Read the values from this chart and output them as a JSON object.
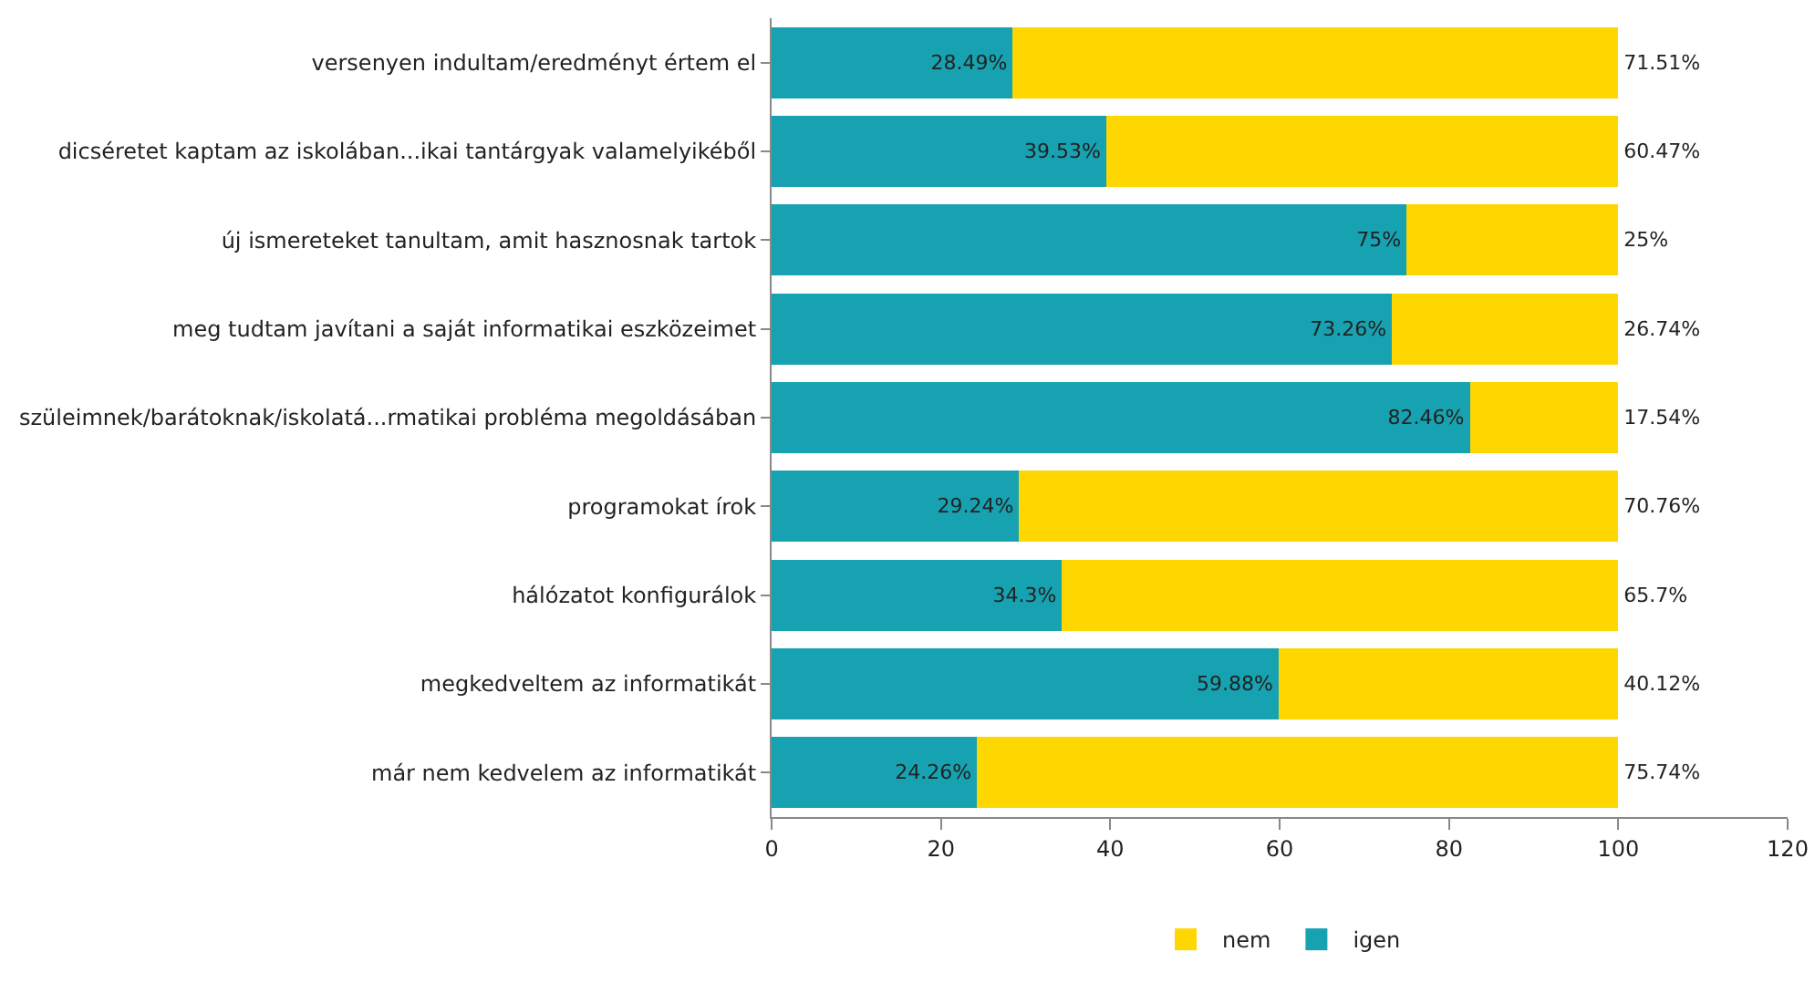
{
  "chart_data": {
    "type": "bar",
    "orientation": "horizontal",
    "stacked": true,
    "categories": [
      "versenyen indultam/eredményt értem el",
      "dicséretet kaptam az iskolában...ikai tantárgyak valamelyikéből",
      "új ismereteket tanultam, amit hasznosnak tartok",
      "meg tudtam javítani a saját informatikai eszközeimet",
      "szüleimnek/barátoknak/iskolatá...rmatikai probléma megoldásában",
      "programokat írok",
      "hálózatot konfigurálok",
      "megkedveltem az informatikát",
      "már nem kedvelem az informatikát"
    ],
    "series": [
      {
        "name": "igen",
        "color": "#17a2b1",
        "values": [
          28.49,
          39.53,
          75,
          73.26,
          82.46,
          29.24,
          34.3,
          59.88,
          24.26
        ],
        "value_labels": [
          "28.49%",
          "39.53%",
          "75%",
          "73.26%",
          "82.46%",
          "29.24%",
          "34.3%",
          "59.88%",
          "24.26%"
        ]
      },
      {
        "name": "nem",
        "color": "#ffd700",
        "values": [
          71.51,
          60.47,
          25,
          26.74,
          17.54,
          70.76,
          65.7,
          40.12,
          75.74
        ],
        "value_labels": [
          "71.51%",
          "60.47%",
          "25%",
          "26.74%",
          "17.54%",
          "70.76%",
          "65.7%",
          "40.12%",
          "75.74%"
        ]
      }
    ],
    "xlim": [
      0,
      120
    ],
    "xticks": [
      0,
      20,
      40,
      60,
      80,
      100,
      120
    ],
    "grid": false,
    "legend": "bottom"
  }
}
